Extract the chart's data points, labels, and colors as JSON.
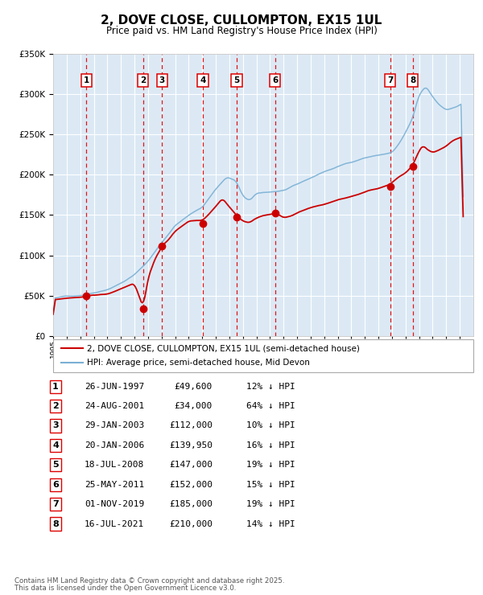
{
  "title": "2, DOVE CLOSE, CULLOMPTON, EX15 1UL",
  "subtitle": "Price paid vs. HM Land Registry's House Price Index (HPI)",
  "legend_property": "2, DOVE CLOSE, CULLOMPTON, EX15 1UL (semi-detached house)",
  "legend_hpi": "HPI: Average price, semi-detached house, Mid Devon",
  "transactions": [
    {
      "num": 1,
      "date": "26-JUN-1997",
      "price": 49600,
      "hpi_pct": "12% ↓ HPI"
    },
    {
      "num": 2,
      "date": "24-AUG-2001",
      "price": 34000,
      "hpi_pct": "64% ↓ HPI"
    },
    {
      "num": 3,
      "date": "29-JAN-2003",
      "price": 112000,
      "hpi_pct": "10% ↓ HPI"
    },
    {
      "num": 4,
      "date": "20-JAN-2006",
      "price": 139950,
      "hpi_pct": "16% ↓ HPI"
    },
    {
      "num": 5,
      "date": "18-JUL-2008",
      "price": 147000,
      "hpi_pct": "19% ↓ HPI"
    },
    {
      "num": 6,
      "date": "25-MAY-2011",
      "price": 152000,
      "hpi_pct": "15% ↓ HPI"
    },
    {
      "num": 7,
      "date": "01-NOV-2019",
      "price": 185000,
      "hpi_pct": "19% ↓ HPI"
    },
    {
      "num": 8,
      "date": "16-JUL-2021",
      "price": 210000,
      "hpi_pct": "14% ↓ HPI"
    }
  ],
  "footer1": "Contains HM Land Registry data © Crown copyright and database right 2025.",
  "footer2": "This data is licensed under the Open Government Licence v3.0.",
  "chart_bg": "#dce9f5",
  "grid_color": "#ffffff",
  "line_color_red": "#cc0000",
  "line_color_blue": "#7ab0d4",
  "marker_color": "#cc0000",
  "vline_color": "#dd0000",
  "ylim": [
    0,
    350000
  ],
  "yticks": [
    0,
    50000,
    100000,
    150000,
    200000,
    250000,
    300000,
    350000
  ],
  "xstart": 1995,
  "xend": 2026,
  "hpi_keypoints": [
    [
      1995.0,
      47000
    ],
    [
      1996.0,
      49000
    ],
    [
      1997.0,
      51000
    ],
    [
      1998.0,
      55000
    ],
    [
      1999.0,
      60000
    ],
    [
      2000.0,
      68000
    ],
    [
      2001.0,
      78000
    ],
    [
      2002.0,
      95000
    ],
    [
      2003.0,
      118000
    ],
    [
      2004.0,
      140000
    ],
    [
      2005.0,
      152000
    ],
    [
      2006.0,
      162000
    ],
    [
      2007.0,
      185000
    ],
    [
      2007.8,
      200000
    ],
    [
      2008.5,
      195000
    ],
    [
      2009.0,
      175000
    ],
    [
      2009.5,
      170000
    ],
    [
      2010.0,
      178000
    ],
    [
      2011.0,
      180000
    ],
    [
      2012.0,
      182000
    ],
    [
      2013.0,
      188000
    ],
    [
      2014.0,
      196000
    ],
    [
      2015.0,
      204000
    ],
    [
      2016.0,
      210000
    ],
    [
      2017.0,
      216000
    ],
    [
      2018.0,
      222000
    ],
    [
      2019.0,
      225000
    ],
    [
      2020.0,
      228000
    ],
    [
      2020.5,
      238000
    ],
    [
      2021.0,
      252000
    ],
    [
      2021.5,
      268000
    ],
    [
      2022.0,
      298000
    ],
    [
      2022.5,
      308000
    ],
    [
      2023.0,
      295000
    ],
    [
      2023.5,
      285000
    ],
    [
      2024.0,
      280000
    ],
    [
      2024.5,
      282000
    ],
    [
      2025.0,
      286000
    ],
    [
      2025.3,
      290000
    ]
  ],
  "price_keypoints": [
    [
      1995.0,
      45000
    ],
    [
      1996.0,
      46500
    ],
    [
      1997.0,
      48000
    ],
    [
      1997.5,
      49600
    ],
    [
      1998.0,
      50500
    ],
    [
      1999.0,
      52000
    ],
    [
      2000.0,
      58000
    ],
    [
      2001.0,
      65000
    ],
    [
      2001.65,
      34000
    ],
    [
      2002.0,
      72000
    ],
    [
      2002.5,
      95000
    ],
    [
      2003.08,
      112000
    ],
    [
      2003.5,
      118000
    ],
    [
      2004.0,
      128000
    ],
    [
      2005.0,
      140000
    ],
    [
      2006.05,
      139950
    ],
    [
      2006.5,
      148000
    ],
    [
      2007.0,
      158000
    ],
    [
      2007.5,
      168000
    ],
    [
      2008.54,
      147000
    ],
    [
      2009.0,
      140000
    ],
    [
      2009.5,
      138000
    ],
    [
      2010.0,
      145000
    ],
    [
      2010.5,
      148000
    ],
    [
      2011.4,
      152000
    ],
    [
      2011.8,
      148000
    ],
    [
      2012.0,
      146000
    ],
    [
      2012.5,
      148000
    ],
    [
      2013.0,
      152000
    ],
    [
      2014.0,
      158000
    ],
    [
      2015.0,
      162000
    ],
    [
      2016.0,
      168000
    ],
    [
      2017.0,
      172000
    ],
    [
      2018.0,
      176000
    ],
    [
      2018.5,
      178000
    ],
    [
      2019.0,
      180000
    ],
    [
      2019.83,
      185000
    ],
    [
      2020.0,
      188000
    ],
    [
      2020.5,
      195000
    ],
    [
      2021.0,
      200000
    ],
    [
      2021.54,
      210000
    ],
    [
      2022.0,
      228000
    ],
    [
      2022.3,
      235000
    ],
    [
      2022.5,
      230000
    ],
    [
      2023.0,
      225000
    ],
    [
      2023.5,
      228000
    ],
    [
      2024.0,
      232000
    ],
    [
      2024.5,
      240000
    ],
    [
      2025.0,
      245000
    ],
    [
      2025.3,
      248000
    ]
  ]
}
